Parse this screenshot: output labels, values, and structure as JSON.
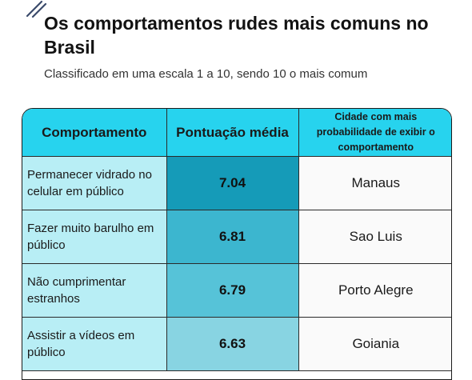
{
  "title": "Os comportamentos rudes mais comuns no Brasil",
  "subtitle": "Classificado em uma escala 1 a 10, sendo 10 o mais comum",
  "table": {
    "headers": [
      "Comportamento",
      "Pontuação média",
      "Cidade com mais probabilidade de exibir o comportamento"
    ],
    "rows": [
      {
        "behavior": "Permanecer vidrado no celular em público",
        "score": "7.04",
        "city": "Manaus",
        "score_color": "#159bb8"
      },
      {
        "behavior": "Fazer muito barulho em público",
        "score": "6.81",
        "city": "Sao Luis",
        "score_color": "#3cb6cf"
      },
      {
        "behavior": "Não cumprimentar estranhos",
        "score": "6.79",
        "city": "Porto Alegre",
        "score_color": "#56c3d8"
      },
      {
        "behavior": "Assistir a vídeos em público",
        "score": "6.63",
        "city": "Goiania",
        "score_color": "#88d4e2"
      }
    ]
  }
}
